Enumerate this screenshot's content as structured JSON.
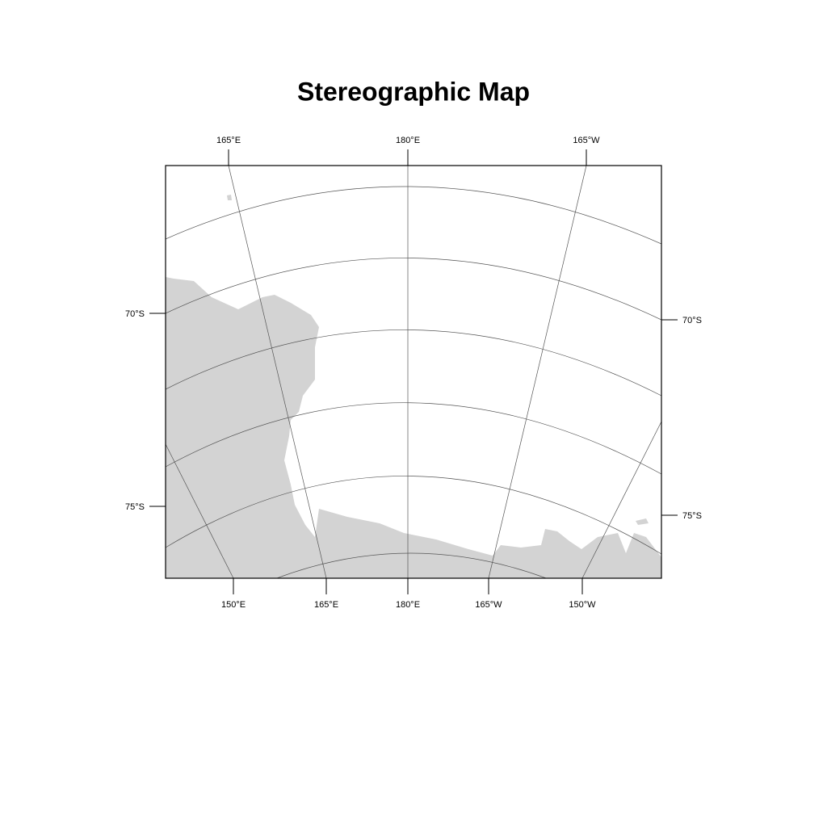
{
  "title": "Stereographic Map",
  "top_labels": [
    "165°E",
    "180°E",
    "165°W"
  ],
  "bottom_labels": [
    "150°E",
    "165°E",
    "180°E",
    "165°W",
    "150°W"
  ],
  "left_labels": [
    "70°S",
    "75°S"
  ],
  "right_labels": [
    "70°S",
    "75°S"
  ]
}
